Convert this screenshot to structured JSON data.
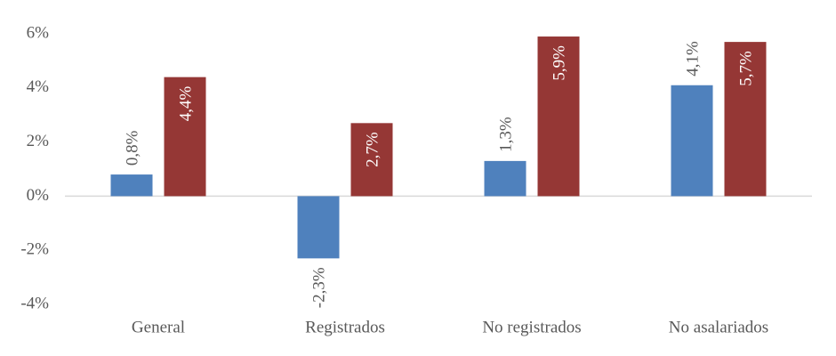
{
  "chart_data": {
    "type": "bar",
    "categories": [
      "General",
      "Registrados",
      "No registrados",
      "No asalariados"
    ],
    "series": [
      {
        "color": "#4f81bd",
        "values": [
          0.8,
          -2.3,
          1.3,
          4.1
        ],
        "value_labels": [
          "0,8%",
          "-2,3%",
          "1,3%",
          "4,1%"
        ]
      },
      {
        "color": "#953735",
        "values": [
          4.4,
          2.7,
          5.9,
          5.7
        ],
        "value_labels": [
          "4,4%",
          "2,7%",
          "5,9%",
          "5,7%"
        ]
      }
    ],
    "ylim": [
      -4,
      6
    ],
    "yticks": [
      {
        "value": -4,
        "label": "-4%"
      },
      {
        "value": -2,
        "label": "-2%"
      },
      {
        "value": 0,
        "label": "0%"
      },
      {
        "value": 2,
        "label": "2%"
      },
      {
        "value": 4,
        "label": "4%"
      },
      {
        "value": 6,
        "label": "6%"
      }
    ],
    "grid": false
  }
}
